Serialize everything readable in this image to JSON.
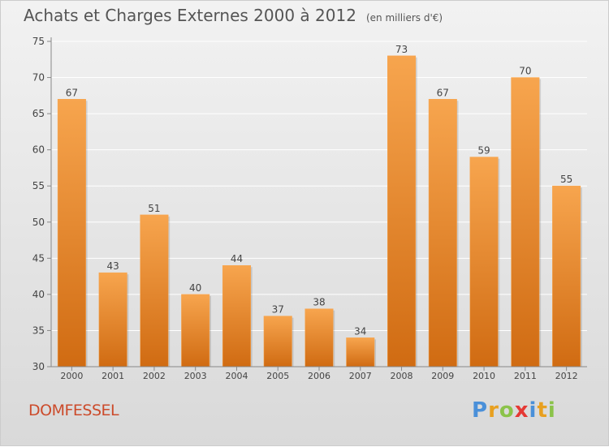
{
  "title": "Achats et Charges Externes 2000 à 2012",
  "unit": "(en milliers d'€)",
  "commune": "DOMFESSEL",
  "logo": {
    "text": "Proxiti"
  },
  "colors": {
    "bar_light": "#f7a54e",
    "bar_dark": "#d06b12",
    "axis": "#888888",
    "grid": "#ffffff",
    "text": "#444444",
    "commune": "#cc4b2b",
    "logo_letters": [
      "#4a90d9",
      "#e8a020",
      "#8bc34a",
      "#e53935",
      "#4a90d9",
      "#e8a020",
      "#8bc34a"
    ]
  },
  "chart_data": {
    "type": "bar",
    "title": "Achats et Charges Externes 2000 à 2012",
    "xlabel": "",
    "ylabel": "",
    "categories": [
      "2000",
      "2001",
      "2002",
      "2003",
      "2004",
      "2005",
      "2006",
      "2007",
      "2008",
      "2009",
      "2010",
      "2011",
      "2012"
    ],
    "values": [
      67,
      43,
      51,
      40,
      44,
      37,
      38,
      34,
      73,
      67,
      59,
      70,
      55
    ],
    "ylim": [
      30,
      75
    ],
    "yticks": [
      30,
      35,
      40,
      45,
      50,
      55,
      60,
      65,
      70,
      75
    ],
    "grid": true,
    "data_labels": true
  }
}
